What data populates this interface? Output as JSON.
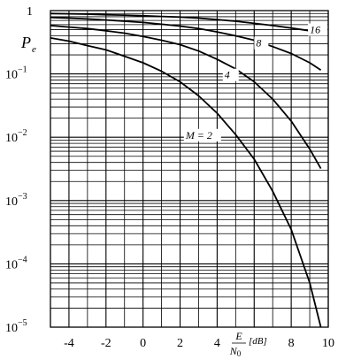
{
  "chart_data": {
    "type": "line",
    "title": "",
    "ylabel_main": "P",
    "ylabel_sub": "e",
    "xlabel_num": "E",
    "xlabel_den": "N",
    "xlabel_den_sub": "0",
    "xlabel_unit": "[dB]",
    "y_scale": "log",
    "xlim": [
      -5,
      10
    ],
    "ylim": [
      1e-05,
      1
    ],
    "grid": true,
    "x_ticks": [
      {
        "v": -4,
        "label": "-4"
      },
      {
        "v": -2,
        "label": "-2"
      },
      {
        "v": 0,
        "label": "0"
      },
      {
        "v": 2,
        "label": "2"
      },
      {
        "v": 4,
        "label": "4"
      },
      {
        "v": 8,
        "label": "8"
      },
      {
        "v": 10,
        "label": "10"
      }
    ],
    "y_ticks": [
      {
        "v": 1,
        "base": "1",
        "exp": ""
      },
      {
        "v": 0.1,
        "base": "10",
        "exp": "−1"
      },
      {
        "v": 0.01,
        "base": "10",
        "exp": "−2"
      },
      {
        "v": 0.001,
        "base": "10",
        "exp": "−3"
      },
      {
        "v": 0.0001,
        "base": "10",
        "exp": "−4"
      },
      {
        "v": 1e-05,
        "base": "10",
        "exp": "−5"
      }
    ],
    "series": [
      {
        "name": "M = 2",
        "x": [
          -5,
          -4,
          -3,
          -2,
          -1,
          0,
          1,
          2,
          3,
          4,
          5,
          6,
          7,
          8,
          9,
          9.6
        ],
        "y": [
          0.37,
          0.33,
          0.28,
          0.24,
          0.19,
          0.15,
          0.11,
          0.075,
          0.045,
          0.024,
          0.011,
          0.0045,
          0.0014,
          0.00035,
          5e-05,
          1e-05
        ]
      },
      {
        "name": "4",
        "x": [
          -5,
          -4,
          -3,
          -2,
          -1,
          0,
          1,
          2,
          3,
          4,
          5,
          6,
          7,
          8,
          9,
          9.6
        ],
        "y": [
          0.58,
          0.55,
          0.52,
          0.48,
          0.44,
          0.39,
          0.34,
          0.29,
          0.23,
          0.17,
          0.12,
          0.075,
          0.04,
          0.018,
          0.0065,
          0.0032
        ]
      },
      {
        "name": "8",
        "x": [
          -5,
          -4,
          -3,
          -2,
          -1,
          0,
          1,
          2,
          3,
          4,
          5,
          6,
          7,
          8,
          9,
          9.6
        ],
        "y": [
          0.78,
          0.76,
          0.74,
          0.71,
          0.68,
          0.65,
          0.61,
          0.57,
          0.52,
          0.46,
          0.4,
          0.34,
          0.27,
          0.21,
          0.15,
          0.115
        ]
      },
      {
        "name": "16",
        "x": [
          -5,
          -4,
          -3,
          -2,
          -1,
          0,
          1,
          2,
          3,
          4,
          5,
          6,
          7,
          8,
          9,
          9.6
        ],
        "y": [
          0.9,
          0.89,
          0.88,
          0.86,
          0.85,
          0.83,
          0.81,
          0.79,
          0.76,
          0.72,
          0.68,
          0.63,
          0.58,
          0.53,
          0.48,
          0.46
        ]
      }
    ]
  }
}
